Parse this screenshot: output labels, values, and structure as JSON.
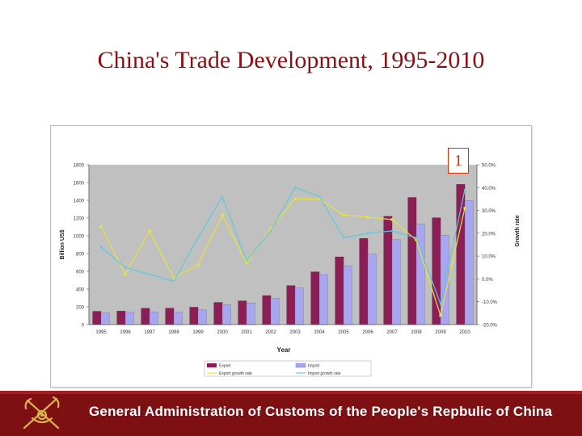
{
  "slide": {
    "title": "China's Trade Development, 1995-2010",
    "badge": "1",
    "footer": "General Administration of Customs of the People's Repbulic of China"
  },
  "colors": {
    "export_bar": "#8c1e55",
    "import_bar": "#a9a6f0",
    "export_growth_line": "#e8e23c",
    "import_growth_line": "#5fc8dc",
    "plot_bg": "#c0c0c0",
    "footer_bg": "#7e1014"
  },
  "icons": {
    "emblem": "customs-emblem-icon"
  },
  "chart_data": {
    "type": "bar",
    "xlabel": "Year",
    "ylabel": "Billion US$",
    "y2label": "Growth rate",
    "ylim": [
      0,
      1800
    ],
    "y2lim": [
      -20,
      50
    ],
    "yticks": [
      "0",
      "200",
      "400",
      "600",
      "800",
      "1000",
      "1200",
      "1400",
      "1600",
      "1800"
    ],
    "y2ticks": [
      "-20.0%",
      "-10.0%",
      "0.0%",
      "10.0%",
      "20.0%",
      "30.0%",
      "40.0%",
      "50.0%"
    ],
    "categories": [
      "1995",
      "1996",
      "1997",
      "1998",
      "1999",
      "2000",
      "2001",
      "2002",
      "2003",
      "2004",
      "2005",
      "2006",
      "2007",
      "2008",
      "2009",
      "2010"
    ],
    "series": [
      {
        "name": "Export",
        "kind": "bar",
        "values": [
          149,
          151,
          183,
          184,
          195,
          249,
          266,
          326,
          438,
          593,
          762,
          969,
          1218,
          1431,
          1202,
          1578
        ]
      },
      {
        "name": "Import",
        "kind": "bar",
        "values": [
          132,
          139,
          142,
          140,
          166,
          225,
          244,
          295,
          413,
          561,
          660,
          792,
          956,
          1133,
          1006,
          1396
        ]
      },
      {
        "name": "Export growth rate",
        "kind": "line",
        "axis": "right",
        "values": [
          23,
          2,
          21,
          0.5,
          6,
          28,
          7,
          22,
          35,
          35,
          28,
          27,
          26,
          17,
          -16,
          31
        ]
      },
      {
        "name": "Import growth rate",
        "kind": "line",
        "axis": "right",
        "values": [
          14,
          5,
          2,
          -1,
          18,
          36,
          8,
          21,
          40,
          36,
          18,
          20,
          21,
          18,
          -11,
          39
        ]
      }
    ],
    "grid": false,
    "legend": "bottom"
  }
}
